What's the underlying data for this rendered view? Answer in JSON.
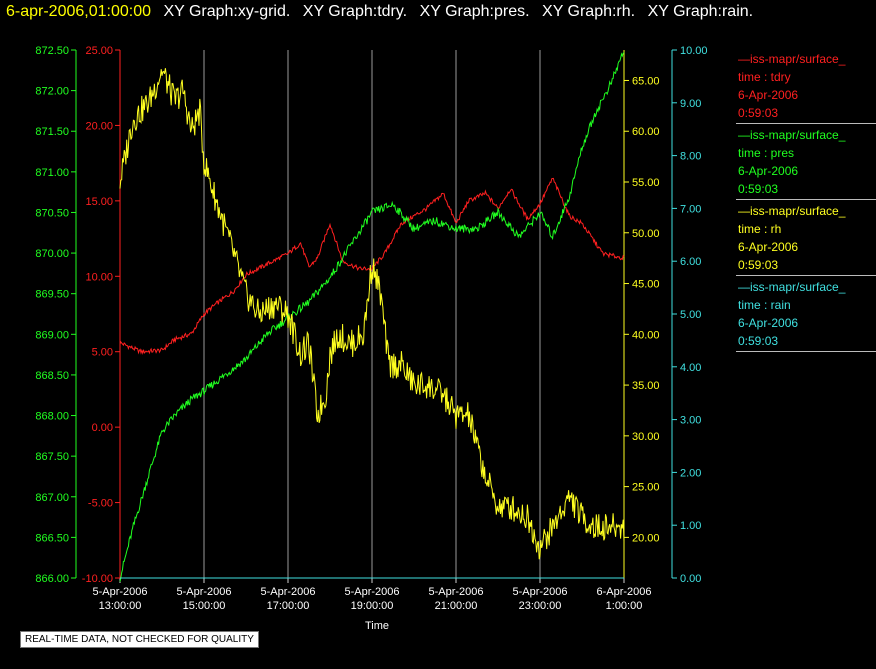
{
  "header": {
    "timestamp": "6-apr-2006,01:00:00",
    "graphs": [
      "XY Graph:xy-grid.",
      "XY Graph:tdry.",
      "XY Graph:pres.",
      "XY Graph:rh.",
      "XY Graph:rain."
    ]
  },
  "legend": [
    {
      "dataset": "iss-mapr/surface_",
      "field": "time : tdry",
      "date": "6-Apr-2006",
      "time": "0:59:03",
      "color": "#ff2020"
    },
    {
      "dataset": "iss-mapr/surface_",
      "field": "time : pres",
      "date": "6-Apr-2006",
      "time": "0:59:03",
      "color": "#20ff20"
    },
    {
      "dataset": "iss-mapr/surface_",
      "field": "time : rh",
      "date": "6-Apr-2006",
      "time": "0:59:03",
      "color": "#ffff20"
    },
    {
      "dataset": "iss-mapr/surface_",
      "field": "time : rain",
      "date": "6-Apr-2006",
      "time": "0:59:03",
      "color": "#40e0e0"
    }
  ],
  "notice": "REAL-TIME DATA, NOT CHECKED FOR QUALITY",
  "chart_data": {
    "type": "line",
    "xlabel": "Time",
    "x_ticks": [
      {
        "hour": 15,
        "date": "5-Apr-2006",
        "time": "15:00:00"
      },
      {
        "hour": 17,
        "date": "5-Apr-2006",
        "time": "17:00:00"
      },
      {
        "hour": 19,
        "date": "5-Apr-2006",
        "time": "19:00:00"
      },
      {
        "hour": 21,
        "date": "5-Apr-2006",
        "time": "21:00:00"
      },
      {
        "hour": 23,
        "date": "5-Apr-2006",
        "time": "23:00:00"
      },
      {
        "hour": 25,
        "date": "6-Apr-2006",
        "time": "1:00:00"
      }
    ],
    "x_start_label": {
      "date": "5-Apr-2006",
      "time": "13:00:00"
    },
    "xlim_hours": [
      13,
      25
    ],
    "grid": "vertical",
    "axes": {
      "tdry": {
        "color": "#ff2020",
        "range": [
          -10,
          25
        ],
        "ticks": [
          "-10.00",
          "-5.00",
          "0.00",
          "5.00",
          "10.00",
          "15.00",
          "20.00",
          "25.00"
        ]
      },
      "pres": {
        "color": "#20ff20",
        "range": [
          866,
          872.5
        ],
        "ticks": [
          "866.00",
          "866.50",
          "867.00",
          "867.50",
          "868.00",
          "868.50",
          "869.00",
          "869.50",
          "870.00",
          "870.50",
          "871.00",
          "871.50",
          "872.00",
          "872.50"
        ]
      },
      "rh": {
        "color": "#ffff20",
        "range": [
          16,
          68
        ],
        "ticks": [
          "20.00",
          "25.00",
          "30.00",
          "35.00",
          "40.00",
          "45.00",
          "50.00",
          "55.00",
          "60.00",
          "65.00"
        ]
      },
      "rain": {
        "color": "#40e0e0",
        "range": [
          0,
          10
        ],
        "ticks": [
          "0.00",
          "1.00",
          "2.00",
          "3.00",
          "4.00",
          "5.00",
          "6.00",
          "7.00",
          "8.00",
          "9.00",
          "10.00"
        ]
      }
    },
    "series": [
      {
        "name": "tdry",
        "color": "#ff2020",
        "x": [
          13,
          13.5,
          14,
          14.3,
          14.7,
          15,
          15.3,
          15.7,
          16,
          16.5,
          17,
          17.3,
          17.5,
          17.7,
          18,
          18.3,
          18.7,
          19,
          19.3,
          19.7,
          20,
          20.3,
          20.7,
          21,
          21.3,
          21.7,
          22,
          22.3,
          22.7,
          23,
          23.3,
          23.7,
          24,
          24.5,
          25
        ],
        "values": [
          5.6,
          5.0,
          5.1,
          5.8,
          6.2,
          7.5,
          8.2,
          9.0,
          10.1,
          10.8,
          11.5,
          12.2,
          10.6,
          11.2,
          13.5,
          11.0,
          10.5,
          10.5,
          11.5,
          13.5,
          14.0,
          14.5,
          15.5,
          13.5,
          15.0,
          15.5,
          14.5,
          15.8,
          13.8,
          14.8,
          16.5,
          14.0,
          13.5,
          11.5,
          11.2
        ]
      },
      {
        "name": "pres",
        "color": "#20ff20",
        "x": [
          13,
          13.3,
          13.7,
          14,
          14.3,
          14.7,
          15,
          15.5,
          16,
          16.5,
          17,
          17.5,
          18,
          18.5,
          19,
          19.5,
          20,
          20.5,
          21,
          21.5,
          22,
          22.5,
          23,
          23.3,
          23.7,
          24,
          24.3,
          24.7,
          25
        ],
        "values": [
          866.0,
          866.6,
          867.3,
          867.8,
          868.0,
          868.2,
          868.3,
          868.5,
          868.7,
          869.0,
          869.2,
          869.4,
          869.7,
          870.1,
          870.5,
          870.6,
          870.3,
          870.4,
          870.3,
          870.3,
          870.5,
          870.2,
          870.5,
          870.2,
          870.7,
          871.3,
          871.7,
          872.1,
          872.5
        ]
      },
      {
        "name": "rh",
        "color": "#ffff20",
        "x": [
          13,
          13.3,
          13.7,
          14,
          14.3,
          14.5,
          14.7,
          14.9,
          15,
          15.3,
          15.7,
          16,
          16.3,
          16.7,
          17,
          17.3,
          17.5,
          17.7,
          17.9,
          18,
          18.2,
          18.5,
          18.8,
          19,
          19.2,
          19.4,
          19.7,
          20,
          20.3,
          20.7,
          21,
          21.3,
          21.5,
          21.7,
          22,
          22.3,
          22.7,
          23,
          23.3,
          23.7,
          24,
          24.3,
          24.7,
          25
        ],
        "values": [
          55,
          61,
          63,
          66,
          63,
          64,
          60,
          62,
          57,
          53,
          48,
          44,
          42,
          43,
          42,
          38,
          39,
          32,
          34,
          38,
          40,
          39,
          40,
          47,
          44,
          37,
          37,
          35,
          35,
          34,
          32,
          32,
          29,
          26,
          23,
          23,
          22,
          19,
          21,
          24,
          22,
          21,
          21,
          21
        ]
      },
      {
        "name": "rain",
        "color": "#40e0e0",
        "x": [
          13,
          25
        ],
        "values": [
          0,
          0
        ]
      }
    ]
  }
}
